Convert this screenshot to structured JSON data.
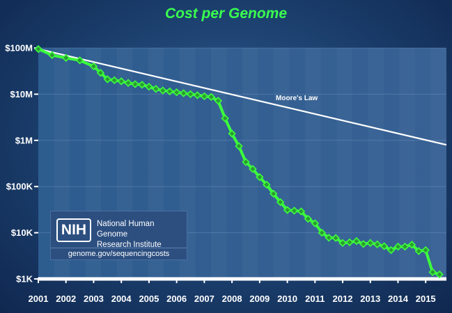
{
  "chart_data": {
    "type": "line",
    "title": "Cost per Genome",
    "y_scale": "log",
    "ylim": [
      1000,
      100000000
    ],
    "xlim": [
      2001.0,
      2015.75
    ],
    "y_ticks": [
      {
        "value": 100000000,
        "label": "$100M"
      },
      {
        "value": 10000000,
        "label": "$10M"
      },
      {
        "value": 1000000,
        "label": "$1M"
      },
      {
        "value": 100000,
        "label": "$100K"
      },
      {
        "value": 10000,
        "label": "$10K"
      },
      {
        "value": 1000,
        "label": "$1K"
      }
    ],
    "x_ticks": [
      {
        "value": 2001,
        "label": "2001"
      },
      {
        "value": 2002,
        "label": "2002"
      },
      {
        "value": 2003,
        "label": "2003"
      },
      {
        "value": 2004,
        "label": "2004"
      },
      {
        "value": 2005,
        "label": "2005"
      },
      {
        "value": 2006,
        "label": "2006"
      },
      {
        "value": 2007,
        "label": "2007"
      },
      {
        "value": 2008,
        "label": "2008"
      },
      {
        "value": 2009,
        "label": "2009"
      },
      {
        "value": 2010,
        "label": "2010"
      },
      {
        "value": 2011,
        "label": "2011"
      },
      {
        "value": 2012,
        "label": "2012"
      },
      {
        "value": 2013,
        "label": "2013"
      },
      {
        "value": 2014,
        "label": "2014"
      },
      {
        "value": 2015,
        "label": "2015"
      }
    ],
    "series": [
      {
        "points": [
          [
            2001.0,
            95000000
          ],
          [
            2001.5,
            70000000
          ],
          [
            2002.0,
            61000000
          ],
          [
            2002.5,
            54000000
          ],
          [
            2003.0,
            40000000
          ],
          [
            2003.25,
            29000000
          ],
          [
            2003.5,
            21000000
          ],
          [
            2003.75,
            20000000
          ],
          [
            2004.0,
            19000000
          ],
          [
            2004.25,
            17500000
          ],
          [
            2004.5,
            16500000
          ],
          [
            2004.75,
            16000000
          ],
          [
            2005.0,
            14500000
          ],
          [
            2005.25,
            13000000
          ],
          [
            2005.5,
            12000000
          ],
          [
            2005.75,
            11500000
          ],
          [
            2006.0,
            11000000
          ],
          [
            2006.25,
            10500000
          ],
          [
            2006.5,
            10000000
          ],
          [
            2006.75,
            9500000
          ],
          [
            2007.0,
            9000000
          ],
          [
            2007.25,
            8700000
          ],
          [
            2007.5,
            7200000
          ],
          [
            2007.75,
            3000000
          ],
          [
            2008.0,
            1400000
          ],
          [
            2008.25,
            750000
          ],
          [
            2008.5,
            340000
          ],
          [
            2008.75,
            240000
          ],
          [
            2009.0,
            160000
          ],
          [
            2009.25,
            110000
          ],
          [
            2009.5,
            70000
          ],
          [
            2009.75,
            46000
          ],
          [
            2010.0,
            31000
          ],
          [
            2010.25,
            30000
          ],
          [
            2010.5,
            29000
          ],
          [
            2010.75,
            20000
          ],
          [
            2011.0,
            16000
          ],
          [
            2011.25,
            10000
          ],
          [
            2011.5,
            7800
          ],
          [
            2011.75,
            7700
          ],
          [
            2012.0,
            6000
          ],
          [
            2012.25,
            6200
          ],
          [
            2012.5,
            6600
          ],
          [
            2012.75,
            5700
          ],
          [
            2013.0,
            6000
          ],
          [
            2013.25,
            5600
          ],
          [
            2013.5,
            5100
          ],
          [
            2013.75,
            4200
          ],
          [
            2014.0,
            5000
          ],
          [
            2014.25,
            5000
          ],
          [
            2014.5,
            5500
          ],
          [
            2014.75,
            4000
          ],
          [
            2015.0,
            4200
          ],
          [
            2015.25,
            1400
          ],
          [
            2015.5,
            1250
          ]
        ]
      },
      {
        "name": "Moore's Law",
        "points": [
          [
            2001.0,
            95000000
          ],
          [
            2015.75,
            800000
          ]
        ]
      }
    ],
    "grid": false,
    "colors": {
      "data_line": "#3cff3c",
      "data_marker": "#2b9a32",
      "moores_law": "#ffffff",
      "title": "#39ff4f"
    }
  },
  "nih_box": {
    "logo_text": "NIH",
    "name_line1": "National Human Genome",
    "name_line2": "Research Institute",
    "url": "genome.gov/sequencingcosts"
  }
}
